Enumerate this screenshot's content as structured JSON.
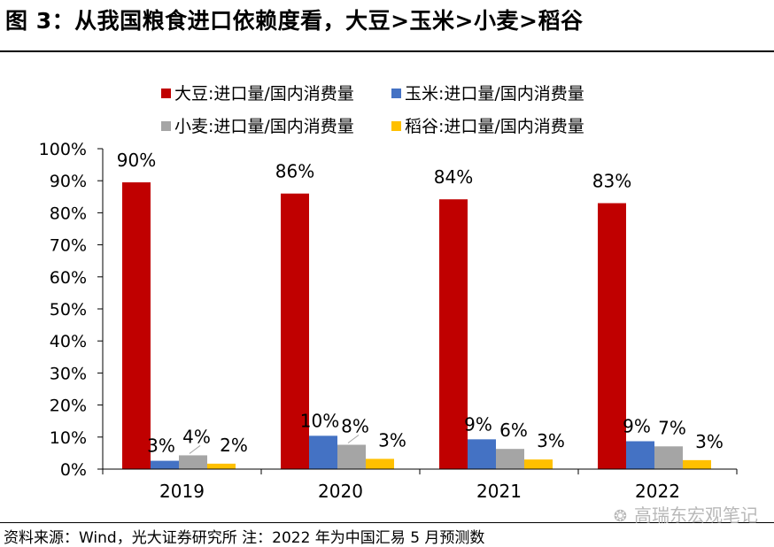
{
  "title": "图 3：从我国粮食进口依赖度看，大豆>玉米>小麦>稻谷",
  "source": "资料来源：Wind，光大证券研究所  注：2022 年为中国汇易 5 月预测数",
  "watermark": "高瑞东宏观笔记",
  "chart_data": {
    "type": "bar",
    "categories": [
      "2019",
      "2020",
      "2021",
      "2022"
    ],
    "series": [
      {
        "name": "大豆:进口量/国内消费量",
        "color": "#c00000",
        "values": [
          90,
          86,
          84,
          83
        ]
      },
      {
        "name": "玉米:进口量/国内消费量",
        "color": "#4472c4",
        "values": [
          3,
          10,
          9,
          9
        ]
      },
      {
        "name": "小麦:进口量/国内消费量",
        "color": "#a5a5a5",
        "values": [
          4,
          8,
          6,
          7
        ]
      },
      {
        "name": "稻谷:进口量/国内消费量",
        "color": "#ffc000",
        "values": [
          2,
          3,
          3,
          3
        ]
      }
    ],
    "bar_values": [
      [
        89.5,
        86,
        84.2,
        83
      ],
      [
        2.6,
        10.4,
        9.3,
        8.7
      ],
      [
        4.3,
        7.6,
        6.3,
        7.1
      ],
      [
        1.7,
        3.2,
        3,
        2.8
      ]
    ],
    "value_labels": [
      [
        "90%",
        "86%",
        "84%",
        "83%"
      ],
      [
        "3%",
        "10%",
        "9%",
        "9%"
      ],
      [
        "4%",
        "8%",
        "6%",
        "7%"
      ],
      [
        "2%",
        "3%",
        "3%",
        "3%"
      ]
    ],
    "y_ticks": [
      "0%",
      "10%",
      "20%",
      "30%",
      "40%",
      "50%",
      "60%",
      "70%",
      "80%",
      "90%",
      "100%"
    ],
    "ylim": [
      0,
      100
    ],
    "legend_position": "top",
    "grid": false
  }
}
